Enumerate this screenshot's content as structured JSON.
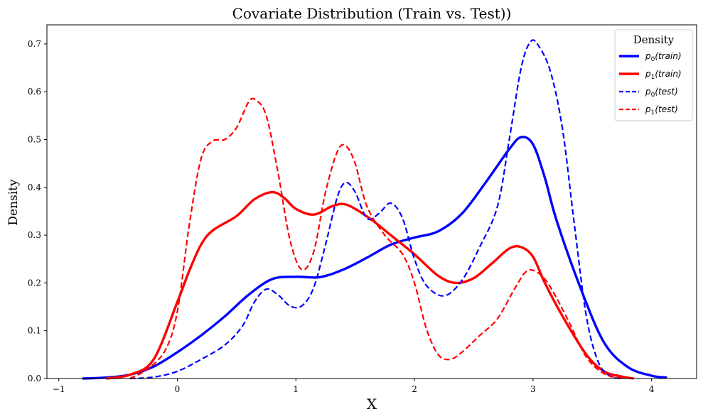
{
  "chart_data": {
    "type": "line",
    "title": "Covariate Distribution (Train vs. Test))",
    "xlabel": "X",
    "ylabel": "Density",
    "xlim": [
      -1.1,
      4.38
    ],
    "ylim": [
      0,
      0.74
    ],
    "xticks": [
      -1,
      0,
      1,
      2,
      3,
      4
    ],
    "yticks": [
      0.0,
      0.1,
      0.2,
      0.3,
      0.4,
      0.5,
      0.6,
      0.7
    ],
    "legend": {
      "title": "Density",
      "placement": "top-right"
    },
    "series": [
      {
        "name": "p0(train)",
        "base": "p",
        "sub": "0",
        "arg": "(train)",
        "color": "#0000ff",
        "style": "solid",
        "points": [
          [
            -0.8,
            0.0
          ],
          [
            -0.6,
            0.002
          ],
          [
            -0.4,
            0.008
          ],
          [
            -0.2,
            0.025
          ],
          [
            0.0,
            0.055
          ],
          [
            0.2,
            0.09
          ],
          [
            0.4,
            0.13
          ],
          [
            0.6,
            0.175
          ],
          [
            0.8,
            0.208
          ],
          [
            1.0,
            0.213
          ],
          [
            1.2,
            0.212
          ],
          [
            1.4,
            0.228
          ],
          [
            1.6,
            0.253
          ],
          [
            1.8,
            0.28
          ],
          [
            2.0,
            0.295
          ],
          [
            2.2,
            0.308
          ],
          [
            2.4,
            0.345
          ],
          [
            2.6,
            0.41
          ],
          [
            2.8,
            0.48
          ],
          [
            2.9,
            0.505
          ],
          [
            3.0,
            0.49
          ],
          [
            3.1,
            0.42
          ],
          [
            3.2,
            0.33
          ],
          [
            3.4,
            0.19
          ],
          [
            3.6,
            0.075
          ],
          [
            3.8,
            0.024
          ],
          [
            4.0,
            0.006
          ],
          [
            4.13,
            0.002
          ]
        ]
      },
      {
        "name": "p1(train)",
        "base": "p",
        "sub": "1",
        "arg": "(train)",
        "color": "#ff0000",
        "style": "solid",
        "points": [
          [
            -0.6,
            0.0
          ],
          [
            -0.4,
            0.008
          ],
          [
            -0.2,
            0.04
          ],
          [
            0.0,
            0.16
          ],
          [
            0.1,
            0.225
          ],
          [
            0.2,
            0.28
          ],
          [
            0.3,
            0.31
          ],
          [
            0.5,
            0.34
          ],
          [
            0.65,
            0.375
          ],
          [
            0.8,
            0.39
          ],
          [
            0.9,
            0.378
          ],
          [
            1.0,
            0.355
          ],
          [
            1.15,
            0.343
          ],
          [
            1.3,
            0.36
          ],
          [
            1.4,
            0.365
          ],
          [
            1.5,
            0.355
          ],
          [
            1.65,
            0.33
          ],
          [
            1.8,
            0.3
          ],
          [
            2.0,
            0.26
          ],
          [
            2.2,
            0.215
          ],
          [
            2.35,
            0.2
          ],
          [
            2.5,
            0.21
          ],
          [
            2.65,
            0.24
          ],
          [
            2.8,
            0.272
          ],
          [
            2.9,
            0.275
          ],
          [
            3.0,
            0.255
          ],
          [
            3.1,
            0.2
          ],
          [
            3.25,
            0.13
          ],
          [
            3.45,
            0.05
          ],
          [
            3.6,
            0.015
          ],
          [
            3.75,
            0.004
          ],
          [
            3.85,
            0.0
          ]
        ]
      },
      {
        "name": "p0(test)",
        "base": "p",
        "sub": "0",
        "arg": "(test)",
        "color": "#0000ff",
        "style": "dashed",
        "points": [
          [
            -0.4,
            0.0
          ],
          [
            -0.2,
            0.003
          ],
          [
            0.0,
            0.015
          ],
          [
            0.2,
            0.04
          ],
          [
            0.4,
            0.07
          ],
          [
            0.55,
            0.11
          ],
          [
            0.65,
            0.16
          ],
          [
            0.75,
            0.187
          ],
          [
            0.85,
            0.175
          ],
          [
            0.95,
            0.152
          ],
          [
            1.05,
            0.152
          ],
          [
            1.15,
            0.19
          ],
          [
            1.25,
            0.28
          ],
          [
            1.35,
            0.38
          ],
          [
            1.42,
            0.41
          ],
          [
            1.5,
            0.39
          ],
          [
            1.6,
            0.335
          ],
          [
            1.7,
            0.345
          ],
          [
            1.8,
            0.367
          ],
          [
            1.9,
            0.335
          ],
          [
            2.0,
            0.25
          ],
          [
            2.1,
            0.195
          ],
          [
            2.25,
            0.173
          ],
          [
            2.4,
            0.205
          ],
          [
            2.55,
            0.275
          ],
          [
            2.7,
            0.36
          ],
          [
            2.8,
            0.5
          ],
          [
            2.9,
            0.65
          ],
          [
            2.98,
            0.705
          ],
          [
            3.05,
            0.695
          ],
          [
            3.15,
            0.64
          ],
          [
            3.25,
            0.52
          ],
          [
            3.35,
            0.32
          ],
          [
            3.45,
            0.13
          ],
          [
            3.55,
            0.035
          ],
          [
            3.65,
            0.005
          ],
          [
            3.75,
            0.0
          ]
        ]
      },
      {
        "name": "p1(test)",
        "base": "p",
        "sub": "1",
        "arg": "(test)",
        "color": "#ff0000",
        "style": "dashed",
        "points": [
          [
            -0.4,
            0.0
          ],
          [
            -0.25,
            0.02
          ],
          [
            -0.1,
            0.06
          ],
          [
            0.0,
            0.14
          ],
          [
            0.1,
            0.32
          ],
          [
            0.2,
            0.46
          ],
          [
            0.3,
            0.497
          ],
          [
            0.4,
            0.5
          ],
          [
            0.5,
            0.525
          ],
          [
            0.6,
            0.578
          ],
          [
            0.66,
            0.583
          ],
          [
            0.75,
            0.55
          ],
          [
            0.85,
            0.43
          ],
          [
            0.95,
            0.29
          ],
          [
            1.05,
            0.228
          ],
          [
            1.15,
            0.265
          ],
          [
            1.25,
            0.39
          ],
          [
            1.35,
            0.475
          ],
          [
            1.42,
            0.487
          ],
          [
            1.5,
            0.45
          ],
          [
            1.6,
            0.36
          ],
          [
            1.75,
            0.3
          ],
          [
            1.9,
            0.26
          ],
          [
            2.0,
            0.2
          ],
          [
            2.1,
            0.105
          ],
          [
            2.2,
            0.05
          ],
          [
            2.3,
            0.04
          ],
          [
            2.4,
            0.055
          ],
          [
            2.55,
            0.09
          ],
          [
            2.7,
            0.125
          ],
          [
            2.85,
            0.19
          ],
          [
            2.95,
            0.225
          ],
          [
            3.05,
            0.22
          ],
          [
            3.15,
            0.19
          ],
          [
            3.3,
            0.12
          ],
          [
            3.45,
            0.045
          ],
          [
            3.6,
            0.01
          ],
          [
            3.75,
            0.0
          ]
        ]
      }
    ]
  }
}
